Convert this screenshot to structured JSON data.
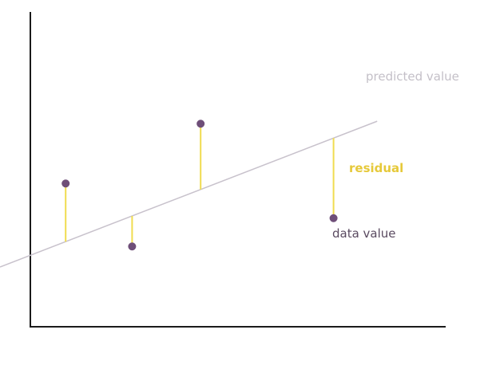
{
  "colors": {
    "axis": "#1a1a1a",
    "regression_line": "#c8c2cc",
    "residual": "#f0dc50",
    "point": "#6e4e78",
    "predicted_label": "#c4c0c8",
    "residual_label": "#e6c93a",
    "data_label": "#5a4a60"
  },
  "labels": {
    "predicted": "predicted value",
    "residual": "residual",
    "data": "data value"
  },
  "chart_data": {
    "type": "scatter",
    "title": "",
    "xlabel": "",
    "ylabel": "",
    "xlim": [
      0,
      100
    ],
    "ylim": [
      0,
      100
    ],
    "grid": false,
    "regression_line": {
      "slope": 0.51,
      "intercept": 22.7
    },
    "points": [
      {
        "x": 8.5,
        "y": 45.5
      },
      {
        "x": 24.5,
        "y": 25.5
      },
      {
        "x": 41.0,
        "y": 64.5
      },
      {
        "x": 73.0,
        "y": 34.5
      }
    ]
  }
}
